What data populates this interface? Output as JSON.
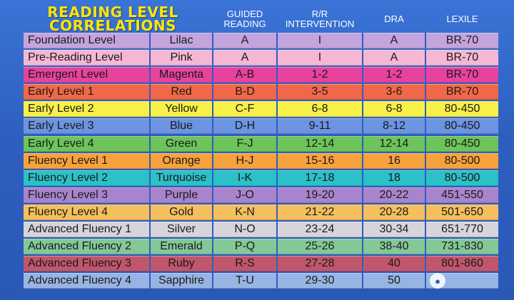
{
  "title": {
    "line1": "READING LEVEL",
    "line2": "CORRELATIONS"
  },
  "headers": {
    "guided": [
      "GUIDED",
      "READING"
    ],
    "rr": [
      "R/R",
      "INTERVENTION"
    ],
    "dra": "DRA",
    "lexile": "LEXILE"
  },
  "rows": [
    {
      "level": "Foundation Level",
      "color": "Lilac",
      "guided": "A",
      "rr": "I",
      "dra": "A",
      "lexile": "BR-70",
      "bg": "#c4a4dc"
    },
    {
      "level": "Pre-Reading Level",
      "color": "Pink",
      "guided": "A",
      "rr": "I",
      "dra": "A",
      "lexile": "BR-70",
      "bg": "#f4b8d4"
    },
    {
      "level": "Emergent Level",
      "color": "Magenta",
      "guided": "A-B",
      "rr": "1-2",
      "dra": "1-2",
      "lexile": "BR-70",
      "bg": "#e8429c"
    },
    {
      "level": "Early Level 1",
      "color": "Red",
      "guided": "B-D",
      "rr": "3-5",
      "dra": "3-6",
      "lexile": "BR-70",
      "bg": "#f06848"
    },
    {
      "level": "Early Level 2",
      "color": "Yellow",
      "guided": "C-F",
      "rr": "6-8",
      "dra": "6-8",
      "lexile": "80-450",
      "bg": "#f8f048"
    },
    {
      "level": "Early Level 3",
      "color": "Blue",
      "guided": "D-H",
      "rr": "9-11",
      "dra": "8-12",
      "lexile": "80-450",
      "bg": "#6c94e0"
    },
    {
      "level": "Early Level 4",
      "color": "Green",
      "guided": "F-J",
      "rr": "12-14",
      "dra": "12-14",
      "lexile": "80-450",
      "bg": "#6cc45a"
    },
    {
      "level": "Fluency Level 1",
      "color": "Orange",
      "guided": "H-J",
      "rr": "15-16",
      "dra": "16",
      "lexile": "80-500",
      "bg": "#f7a23c"
    },
    {
      "level": "Fluency Level 2",
      "color": "Turquoise",
      "guided": "I-K",
      "rr": "17-18",
      "dra": "18",
      "lexile": "80-500",
      "bg": "#2cc0c8"
    },
    {
      "level": "Fluency Level 3",
      "color": "Purple",
      "guided": "J-O",
      "rr": "19-20",
      "dra": "20-22",
      "lexile": "451-550",
      "bg": "#a884cc"
    },
    {
      "level": "Fluency Level 4",
      "color": "Gold",
      "guided": "K-N",
      "rr": "21-22",
      "dra": "20-28",
      "lexile": "501-650",
      "bg": "#f4bf5c"
    },
    {
      "level": "Advanced Fluency 1",
      "color": "Silver",
      "guided": "N-O",
      "rr": "23-24",
      "dra": "30-34",
      "lexile": "651-770",
      "bg": "#d6d6da"
    },
    {
      "level": "Advanced Fluency 2",
      "color": "Emerald",
      "guided": "P-Q",
      "rr": "25-26",
      "dra": "38-40",
      "lexile": "731-830",
      "bg": "#84c898"
    },
    {
      "level": "Advanced Fluency 3",
      "color": "Ruby",
      "guided": "R-S",
      "rr": "27-28",
      "dra": "40",
      "lexile": "801-860",
      "bg": "#c0566c"
    },
    {
      "level": "Advanced Fluency 4",
      "color": "Sapphire",
      "guided": "T-U",
      "rr": "29-30",
      "dra": "50",
      "lexile": "",
      "bg": "#98b4e4"
    }
  ],
  "watermark": {
    "icon": "chat-bubble-icon"
  }
}
